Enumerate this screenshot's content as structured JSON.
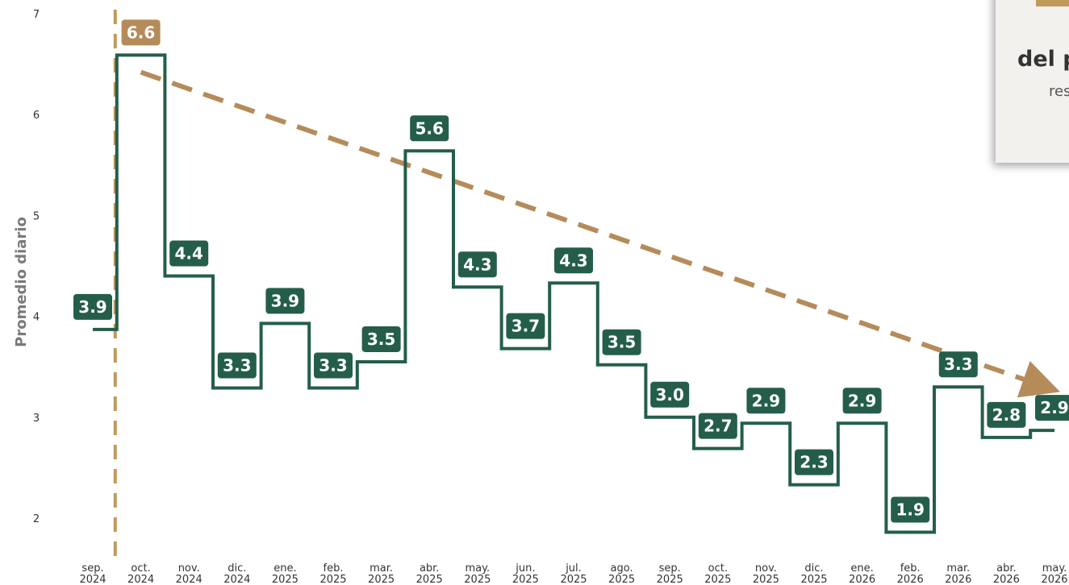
{
  "chart_data": {
    "type": "line",
    "step": true,
    "title": "",
    "ylabel": "Promedio diario",
    "xlabel": "",
    "ylim": [
      1.75,
      7.05
    ],
    "yticks": [
      2,
      3,
      4,
      5,
      6,
      7
    ],
    "grid": false,
    "categories": [
      [
        "sep.",
        "2024"
      ],
      [
        "oct.",
        "2024"
      ],
      [
        "nov.",
        "2024"
      ],
      [
        "dic.",
        "2024"
      ],
      [
        "ene.",
        "2025"
      ],
      [
        "feb.",
        "2025"
      ],
      [
        "mar.",
        "2025"
      ],
      [
        "abr.",
        "2025"
      ],
      [
        "may.",
        "2025"
      ],
      [
        "jun.",
        "2025"
      ],
      [
        "jul.",
        "2025"
      ],
      [
        "ago.",
        "2025"
      ],
      [
        "sep.",
        "2025"
      ],
      [
        "oct.",
        "2025"
      ],
      [
        "nov.",
        "2025"
      ],
      [
        "dic.",
        "2025"
      ],
      [
        "ene.",
        "2026"
      ],
      [
        "feb.",
        "2026"
      ],
      [
        "mar.",
        "2026"
      ],
      [
        "abr.",
        "2026"
      ],
      [
        "may.",
        "2026"
      ]
    ],
    "series": [
      {
        "values": [
          3.87,
          6.59,
          4.4,
          3.29,
          3.93,
          3.29,
          3.55,
          5.64,
          4.29,
          3.68,
          4.33,
          3.52,
          3.0,
          2.69,
          2.94,
          2.33,
          2.94,
          1.86,
          3.3,
          2.8,
          2.87
        ],
        "labels": [
          "3.9",
          "6.6",
          "4.4",
          "3.3",
          "3.9",
          "3.3",
          "3.5",
          "5.6",
          "4.3",
          "3.7",
          "4.3",
          "3.5",
          "3.0",
          "2.7",
          "2.9",
          "2.3",
          "2.9",
          "1.9",
          "3.3",
          "2.8",
          "2.9"
        ],
        "color": "#245e4a"
      }
    ],
    "highlight": {
      "index": 1,
      "color": "#b58b5a"
    },
    "reference_line": {
      "after_category": "sep. 2024",
      "color": "#c19a5b",
      "style": "dashed"
    },
    "trend_line": {
      "from": [
        "oct.",
        "2024",
        6.42
      ],
      "to": [
        "may.",
        "2026",
        3.33
      ],
      "color": "#b58b5a",
      "style": "dashed",
      "arrow": true
    }
  },
  "note": {
    "title": "del p",
    "subtitle": "res"
  }
}
